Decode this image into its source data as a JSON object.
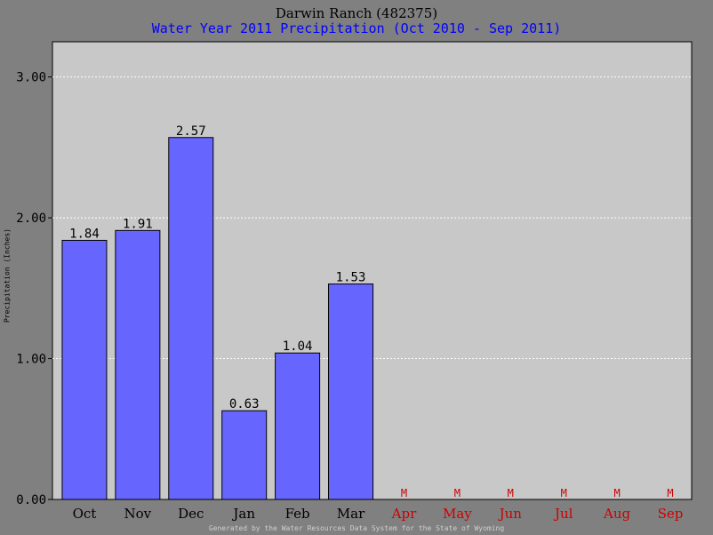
{
  "chart_data": {
    "type": "bar",
    "title": "Darwin Ranch (482375)",
    "subtitle": "Water Year 2011 Precipitation (Oct 2010 - Sep 2011)",
    "ylabel": "Precipitation (Inches)",
    "footer": "Generated by the Water Resources Data System for the State of Wyoming",
    "categories": [
      "Oct",
      "Nov",
      "Dec",
      "Jan",
      "Feb",
      "Mar",
      "Apr",
      "May",
      "Jun",
      "Jul",
      "Aug",
      "Sep"
    ],
    "values": [
      1.84,
      1.91,
      2.57,
      0.63,
      1.04,
      1.53,
      null,
      null,
      null,
      null,
      null,
      null
    ],
    "value_labels": [
      "1.84",
      "1.91",
      "2.57",
      "0.63",
      "1.04",
      "1.53",
      "M",
      "M",
      "M",
      "M",
      "M",
      "M"
    ],
    "yticks": [
      "0.00",
      "1.00",
      "2.00",
      "3.00"
    ],
    "ytick_values": [
      0,
      1,
      2,
      3
    ],
    "ylim": [
      0,
      3.25
    ],
    "grid": true,
    "colors": {
      "bar": "#6666ff",
      "plot_bg": "#c8c8c8",
      "page_bg": "#808080",
      "grid": "#ffffff",
      "missing": "#cc0000",
      "subtitle": "#0000ff"
    }
  }
}
